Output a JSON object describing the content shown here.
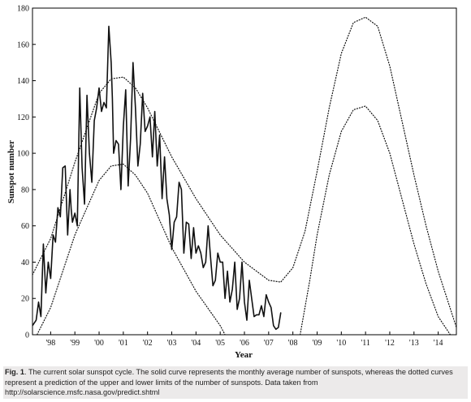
{
  "chart_data": {
    "type": "line",
    "xlabel": "Year",
    "ylabel": "Sunspot number",
    "ylim": [
      0,
      180
    ],
    "xlim": [
      1997.25,
      2014.75
    ],
    "grid": false,
    "y_ticks": [
      0,
      20,
      40,
      60,
      80,
      100,
      120,
      140,
      160,
      180
    ],
    "x_ticks": [
      {
        "value": 1998,
        "label": "'98"
      },
      {
        "value": 1999,
        "label": "'99"
      },
      {
        "value": 2000,
        "label": "'00"
      },
      {
        "value": 2001,
        "label": "'01"
      },
      {
        "value": 2002,
        "label": "'02"
      },
      {
        "value": 2003,
        "label": "'03"
      },
      {
        "value": 2004,
        "label": "'04"
      },
      {
        "value": 2005,
        "label": "'05"
      },
      {
        "value": 2006,
        "label": "'06"
      },
      {
        "value": 2007,
        "label": "'07"
      },
      {
        "value": 2008,
        "label": "'08"
      },
      {
        "value": 2009,
        "label": "'09"
      },
      {
        "value": 2010,
        "label": "'10"
      },
      {
        "value": 2011,
        "label": "'11"
      },
      {
        "value": 2012,
        "label": "'12"
      },
      {
        "value": 2013,
        "label": "'13"
      },
      {
        "value": 2014,
        "label": "'14"
      }
    ],
    "series": [
      {
        "style": "solid",
        "x": [
          1997.25,
          1997.4,
          1997.5,
          1997.6,
          1997.7,
          1997.8,
          1997.9,
          1998.0,
          1998.1,
          1998.2,
          1998.3,
          1998.4,
          1998.5,
          1998.6,
          1998.7,
          1998.8,
          1998.85,
          1998.9,
          1999.0,
          1999.1,
          1999.2,
          1999.3,
          1999.4,
          1999.5,
          1999.6,
          1999.7,
          1999.8,
          1999.9,
          2000.0,
          2000.1,
          2000.2,
          2000.3,
          2000.4,
          2000.5,
          2000.55,
          2000.6,
          2000.7,
          2000.8,
          2000.9,
          2001.0,
          2001.1,
          2001.2,
          2001.3,
          2001.4,
          2001.5,
          2001.6,
          2001.7,
          2001.8,
          2001.9,
          2002.0,
          2002.1,
          2002.2,
          2002.3,
          2002.4,
          2002.5,
          2002.6,
          2002.7,
          2002.8,
          2002.9,
          2003.0,
          2003.1,
          2003.2,
          2003.3,
          2003.4,
          2003.5,
          2003.6,
          2003.7,
          2003.8,
          2003.9,
          2004.0,
          2004.1,
          2004.2,
          2004.3,
          2004.4,
          2004.5,
          2004.6,
          2004.7,
          2004.8,
          2004.9,
          2005.0,
          2005.1,
          2005.2,
          2005.3,
          2005.4,
          2005.5,
          2005.6,
          2005.7,
          2005.8,
          2005.9,
          2006.0,
          2006.1,
          2006.2,
          2006.3,
          2006.4,
          2006.5,
          2006.6,
          2006.7,
          2006.8,
          2006.9,
          2007.0,
          2007.1,
          2007.2,
          2007.3,
          2007.4,
          2007.5
        ],
        "y": [
          5,
          8,
          18,
          10,
          50,
          23,
          40,
          31,
          55,
          51,
          70,
          65,
          92,
          93,
          55,
          80,
          69,
          62,
          67,
          60,
          136,
          92,
          72,
          132,
          100,
          84,
          118,
          125,
          136,
          123,
          128,
          125,
          170,
          150,
          130,
          100,
          107,
          105,
          80,
          115,
          135,
          82,
          108,
          150,
          125,
          93,
          105,
          133,
          112,
          115,
          120,
          98,
          123,
          93,
          110,
          75,
          98,
          75,
          66,
          47,
          62,
          65,
          84,
          80,
          45,
          62,
          61,
          42,
          59,
          45,
          49,
          45,
          37,
          40,
          60,
          43,
          27,
          30,
          45,
          40,
          40,
          20,
          35,
          18,
          25,
          40,
          14,
          20,
          40,
          18,
          8,
          30,
          20,
          10,
          11,
          11,
          16,
          10,
          22,
          18,
          15,
          5,
          3,
          4,
          12
        ]
      },
      {
        "style": "dotted",
        "x": [
          1997.25,
          1998,
          1999,
          2000,
          2000.5,
          2001,
          2001.5,
          2002,
          2003,
          2004,
          2005,
          2006,
          2007,
          2007.5,
          2008,
          2008.5,
          2009,
          2009.5,
          2010,
          2010.5,
          2011,
          2011.5,
          2012,
          2012.5,
          2013,
          2013.5,
          2014,
          2014.75
        ],
        "y": [
          33,
          53,
          95,
          133,
          141,
          142,
          136,
          125,
          98,
          75,
          55,
          40,
          30,
          29,
          37,
          57,
          90,
          125,
          155,
          172,
          175,
          170,
          148,
          118,
          88,
          60,
          35,
          4
        ]
      },
      {
        "style": "dotted",
        "x": [
          1997.25,
          1998,
          1999,
          2000,
          2000.5,
          2001,
          2001.5,
          2002,
          2003,
          2004,
          2005,
          2005.2,
          2005.6,
          2007.9,
          2008.3,
          2008.7,
          2009,
          2009.5,
          2010,
          2010.5,
          2011,
          2011.5,
          2012,
          2012.5,
          2013,
          2013.5,
          2014,
          2014.75
        ],
        "y": [
          -5,
          15,
          55,
          85,
          93,
          94,
          88,
          78,
          48,
          24,
          5,
          0,
          -12,
          -12,
          0,
          30,
          55,
          88,
          112,
          124,
          126,
          118,
          100,
          75,
          50,
          28,
          10,
          -5
        ]
      }
    ]
  },
  "caption": {
    "fig_label": "Fig. 1",
    "text": ". The current solar sunspot cycle. The solid curve represents the monthly average number of sunspots, whereas the dotted curves represent a prediction of the upper and lower limits of the number of sunspots. Data taken from http://solarscience.msfc.nasa.gov/predict.shtml"
  }
}
